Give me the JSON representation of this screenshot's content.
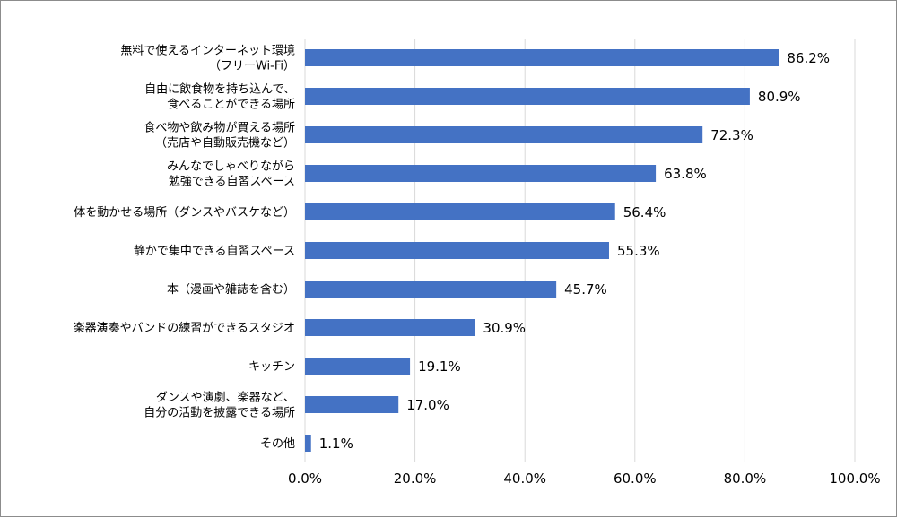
{
  "chart_data": {
    "type": "bar",
    "orientation": "horizontal",
    "categories": [
      [
        "無料で使えるインターネット環境",
        "（フリーWi-Fi）"
      ],
      [
        "自由に飲食物を持ち込んで、",
        "食べることができる場所"
      ],
      [
        "食べ物や飲み物が買える場所",
        "（売店や自動販売機など）"
      ],
      [
        "みんなでしゃべりながら",
        "勉強できる自習スペース"
      ],
      [
        "体を動かせる場所（ダンスやバスケなど）"
      ],
      [
        "静かで集中できる自習スペース"
      ],
      [
        "本（漫画や雑誌を含む）"
      ],
      [
        "楽器演奏やバンドの練習ができるスタジオ"
      ],
      [
        "キッチン"
      ],
      [
        "ダンスや演劇、楽器など、",
        "自分の活動を披露できる場所"
      ],
      [
        "その他"
      ]
    ],
    "values": [
      86.2,
      80.9,
      72.3,
      63.8,
      56.4,
      55.3,
      45.7,
      30.9,
      19.1,
      17.0,
      1.1
    ],
    "value_labels": [
      "86.2%",
      "80.9%",
      "72.3%",
      "63.8%",
      "56.4%",
      "55.3%",
      "45.7%",
      "30.9%",
      "19.1%",
      "17.0%",
      "1.1%"
    ],
    "xlim": [
      0,
      100
    ],
    "x_ticks": [
      0,
      20,
      40,
      60,
      80,
      100
    ],
    "x_tick_labels": [
      "0.0%",
      "20.0%",
      "40.0%",
      "60.0%",
      "80.0%",
      "100.0%"
    ],
    "grid": "vertical",
    "bar_color": "#4472C4",
    "grid_color": "#d9d9d9"
  }
}
